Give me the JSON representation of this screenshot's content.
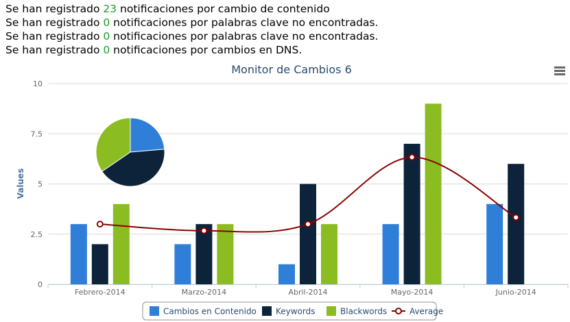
{
  "notifications": [
    {
      "prefix": "Se han registrado ",
      "count": "23",
      "suffix": " notificaciones por cambio de contenido"
    },
    {
      "prefix": "Se han registrado ",
      "count": "0",
      "suffix": " notificaciones por palabras clave no encontradas."
    },
    {
      "prefix": "Se han registrado ",
      "count": "0",
      "suffix": " notificaciones por palabras clave no encontradas."
    },
    {
      "prefix": "Se han registrado ",
      "count": "0",
      "suffix": " notificaciones por cambios en DNS."
    }
  ],
  "menu_icon": "hamburger-menu-icon",
  "chart_data": {
    "type": "bar",
    "title": "Monitor de Cambios 6",
    "xlabel": "",
    "ylabel": "Values",
    "ylim": [
      0,
      10
    ],
    "yticks": [
      "0",
      "2.5",
      "5",
      "7.5",
      "10"
    ],
    "ytick_values": [
      0,
      2.5,
      5,
      7.5,
      10
    ],
    "grid": true,
    "legend_position": "bottom-center",
    "categories": [
      "Febrero-2014",
      "Marzo-2014",
      "Abril-2014",
      "Mayo-2014",
      "Junio-2014"
    ],
    "series": [
      {
        "name": "Cambios en Contenido",
        "color": "#2f7ed8",
        "values": [
          3,
          2,
          1,
          3,
          4
        ]
      },
      {
        "name": "Keywords",
        "color": "#0d233a",
        "values": [
          2,
          3,
          5,
          7,
          6
        ]
      },
      {
        "name": "Blackwords",
        "color": "#8bbc21",
        "values": [
          4,
          3,
          3,
          9,
          0
        ]
      }
    ],
    "average": {
      "name": "Average",
      "type": "spline",
      "color": "#8b0000",
      "values": [
        3,
        2.67,
        3,
        6.33,
        3.33
      ]
    },
    "pie": {
      "slices": [
        {
          "name": "Cambios en Contenido",
          "value": 13,
          "color": "#2f7ed8"
        },
        {
          "name": "Keywords",
          "value": 23,
          "color": "#0d233a"
        },
        {
          "name": "Blackwords",
          "value": 19,
          "color": "#8bbc21"
        }
      ]
    }
  }
}
